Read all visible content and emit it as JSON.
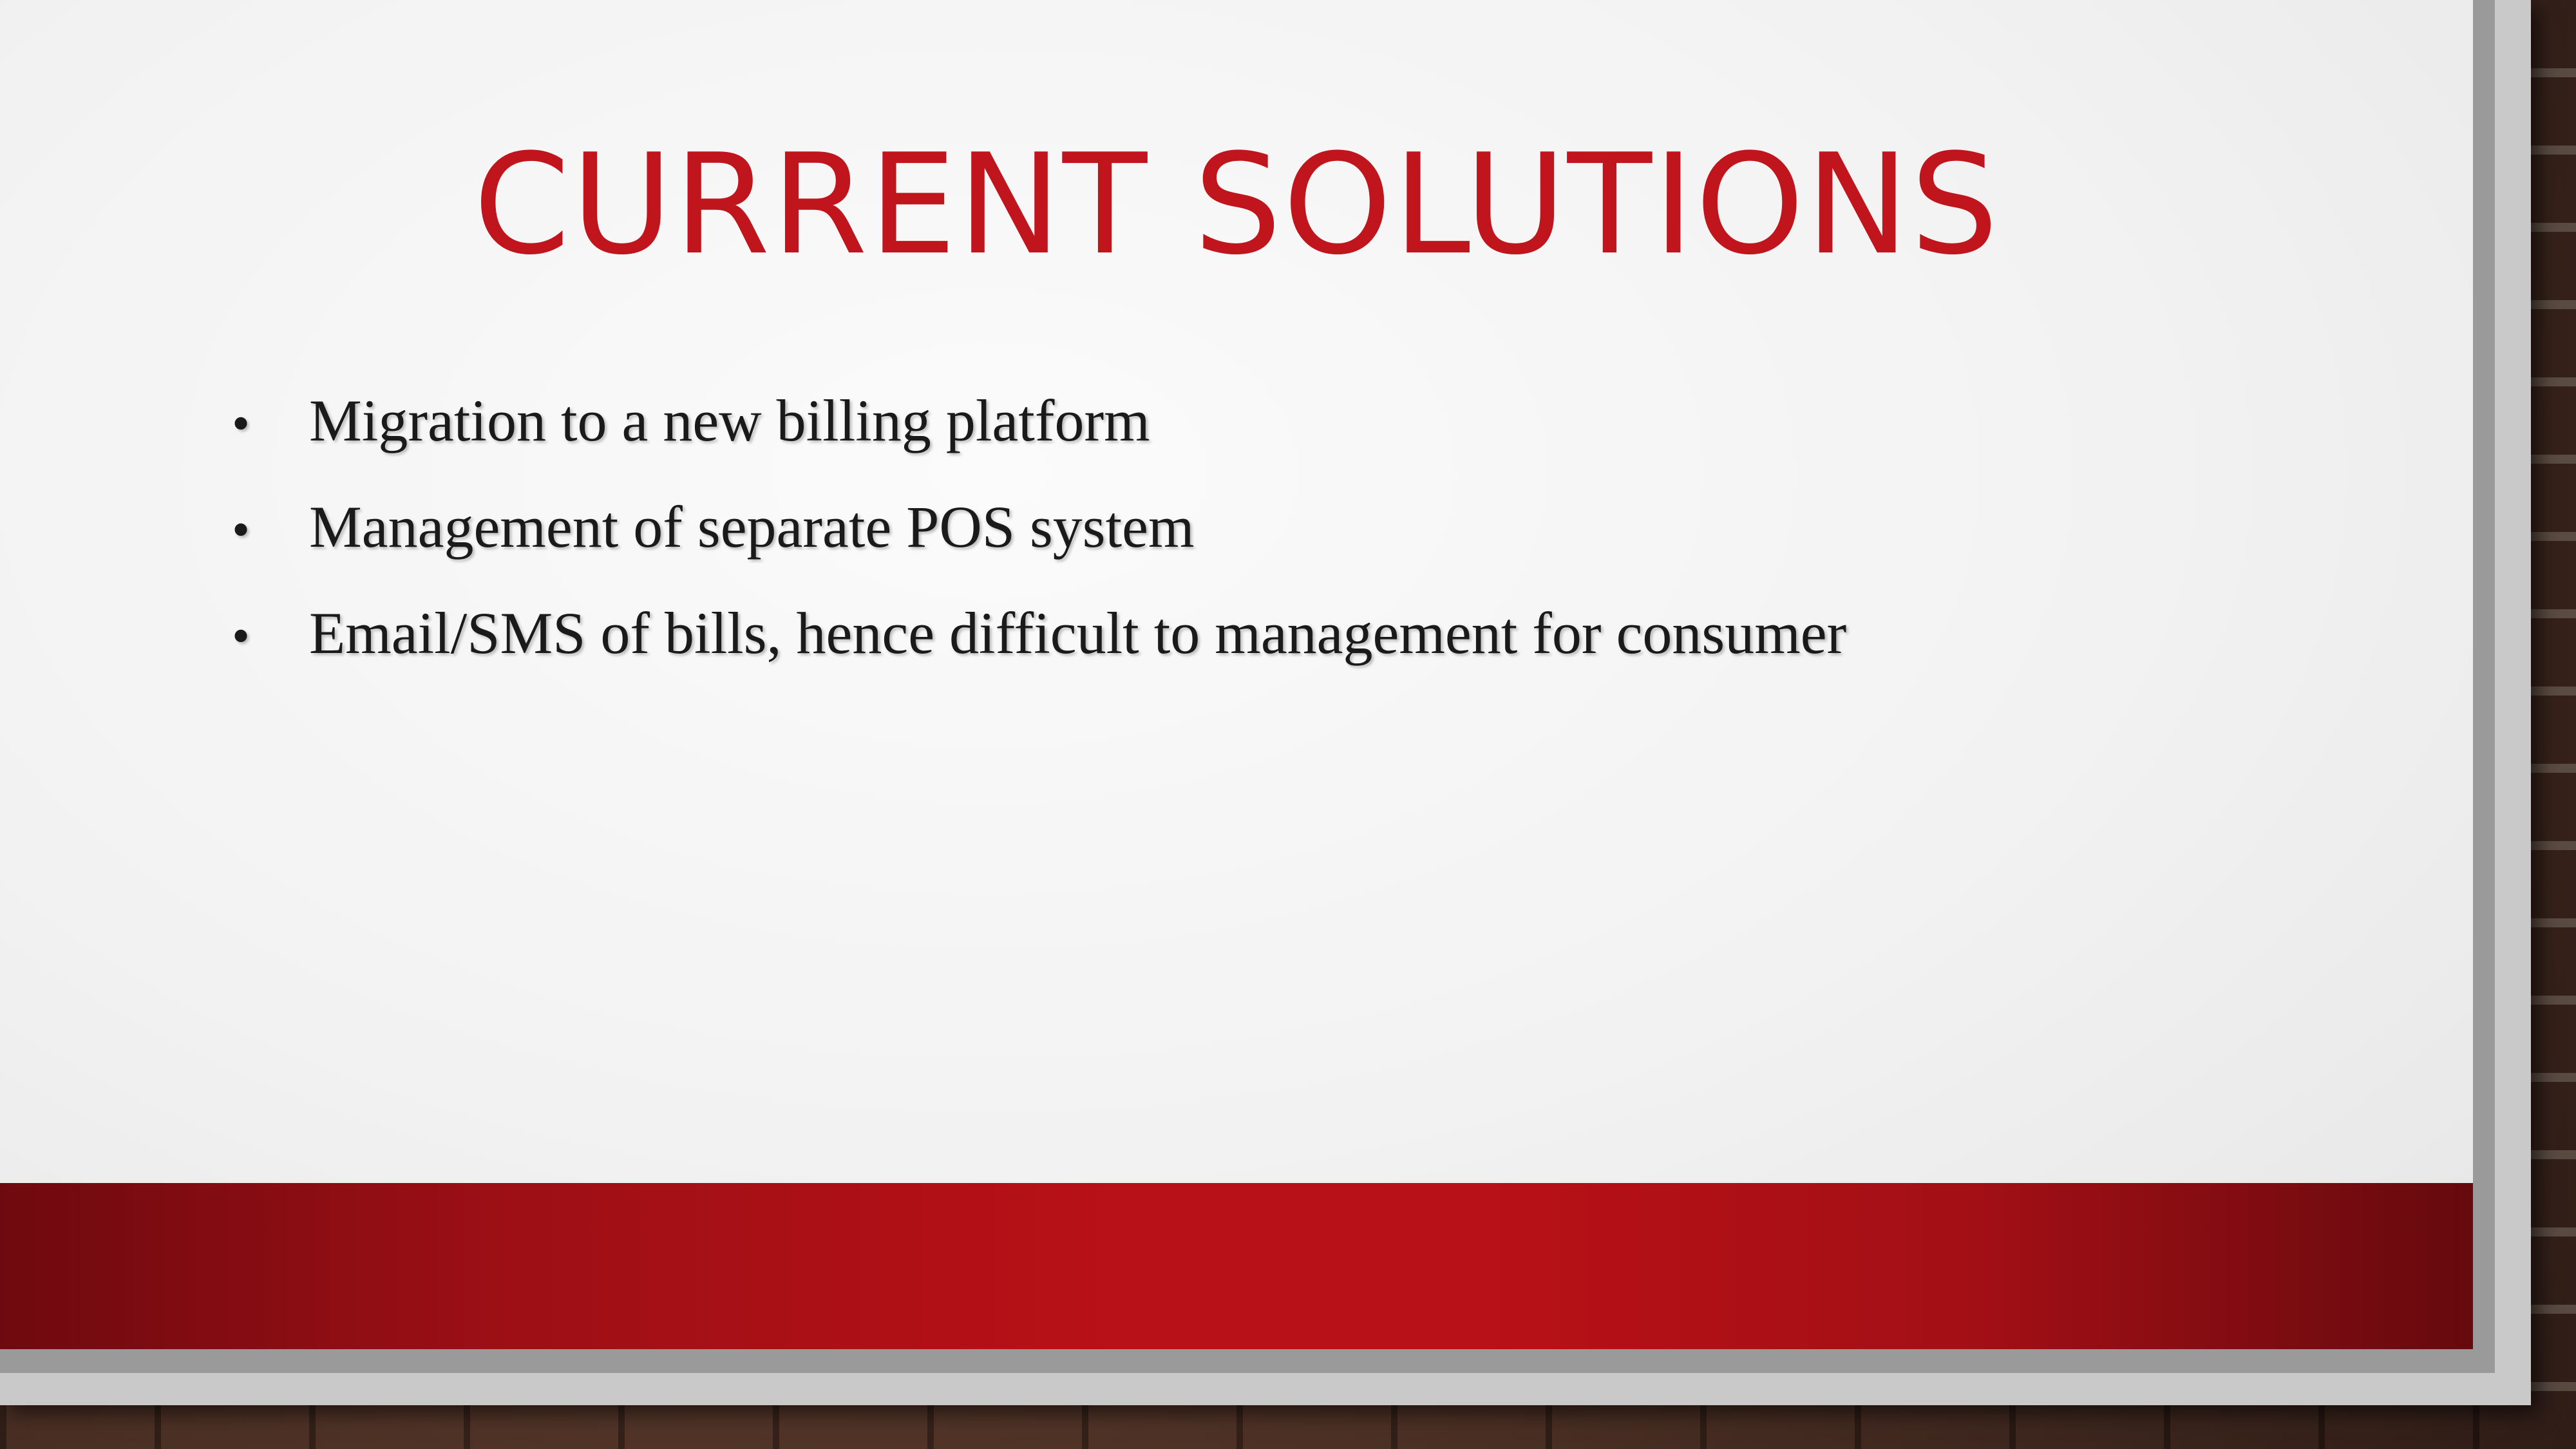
{
  "slide": {
    "title": "CURRENT SOLUTIONS",
    "bullets": [
      "Migration to a new billing platform",
      "Management of separate POS system",
      "Email/SMS of bills, hence difficult to management for consumer"
    ],
    "bullet_symbol": "•"
  },
  "theme": {
    "accent_color": "#c0151c",
    "footer_color": "#b81117",
    "text_color": "#1a1a1a"
  }
}
